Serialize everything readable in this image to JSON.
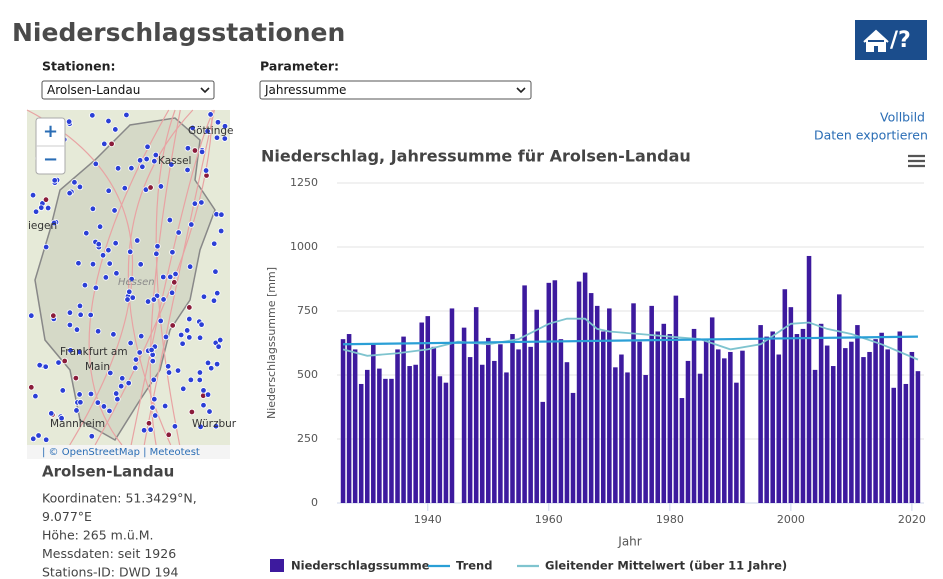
{
  "header": {
    "title": "Niederschlagsstationen",
    "help": "/?"
  },
  "controls": {
    "station_label": "Stationen:",
    "station_value": "Arolsen-Landau",
    "parameter_label": "Parameter:",
    "parameter_value": "Jahressumme"
  },
  "map": {
    "zoom_in": "+",
    "zoom_out": "−",
    "places": [
      "Göttinge",
      "Kassel",
      "iegen",
      "Hessen",
      "Frankfurt am",
      "Main",
      "Würzbur",
      "Mannheim"
    ],
    "attribution": "| © OpenStreetMap | Meteotest"
  },
  "station": {
    "name": "Arolsen-Landau",
    "lines": [
      "Koordinaten: 51.3429°N,",
      "9.077°E",
      "Höhe: 265 m.ü.M.",
      "Messdaten: seit 1926",
      "Stations-ID: DWD 194"
    ]
  },
  "links": [
    "Vollbild",
    "Daten exportieren"
  ],
  "chart_data": {
    "type": "bar",
    "title": "Niederschlag, Jahressumme für Arolsen-Landau",
    "y_label": "Niederschlagssumme [mm]",
    "x_label": "Jahr",
    "x": [
      1926,
      1927,
      1928,
      1929,
      1930,
      1931,
      1932,
      1933,
      1934,
      1935,
      1936,
      1937,
      1938,
      1939,
      1940,
      1941,
      1942,
      1943,
      1944,
      1945,
      1946,
      1947,
      1948,
      1949,
      1950,
      1951,
      1952,
      1953,
      1954,
      1955,
      1956,
      1957,
      1958,
      1959,
      1960,
      1961,
      1962,
      1963,
      1964,
      1965,
      1966,
      1967,
      1968,
      1969,
      1970,
      1971,
      1972,
      1973,
      1974,
      1975,
      1976,
      1977,
      1978,
      1979,
      1980,
      1981,
      1982,
      1983,
      1984,
      1985,
      1986,
      1987,
      1988,
      1989,
      1990,
      1991,
      1992,
      1993,
      1994,
      1995,
      1996,
      1997,
      1998,
      1999,
      2000,
      2001,
      2002,
      2003,
      2004,
      2005,
      2006,
      2007,
      2008,
      2009,
      2010,
      2011,
      2012,
      2013,
      2014,
      2015,
      2016,
      2017,
      2018,
      2019,
      2020,
      2021
    ],
    "series": [
      {
        "name": "Niederschlagssumme",
        "color": "#3d1a9e",
        "values": [
          640,
          660,
          600,
          465,
          520,
          620,
          525,
          485,
          485,
          600,
          650,
          535,
          540,
          705,
          730,
          610,
          495,
          470,
          760,
          null,
          685,
          570,
          765,
          540,
          645,
          555,
          620,
          510,
          660,
          600,
          850,
          610,
          755,
          395,
          860,
          870,
          640,
          550,
          430,
          865,
          900,
          820,
          770,
          670,
          760,
          530,
          580,
          510,
          780,
          630,
          500,
          770,
          670,
          700,
          660,
          810,
          410,
          555,
          680,
          505,
          640,
          725,
          600,
          565,
          590,
          470,
          595,
          null,
          null,
          695,
          650,
          670,
          580,
          835,
          765,
          660,
          680,
          965,
          520,
          700,
          615,
          535,
          815,
          605,
          630,
          695,
          570,
          590,
          640,
          665,
          600,
          450,
          670,
          465,
          590,
          515
        ]
      },
      {
        "name": "Trend",
        "color": "#2a9fd6",
        "x": [
          1926,
          2021
        ],
        "values": [
          620,
          650
        ]
      },
      {
        "name": "Gleitender Mittelwert (über 11 Jahre)",
        "color": "#7fc4cf",
        "x": [
          1926,
          1930,
          1935,
          1940,
          1945,
          1950,
          1955,
          1960,
          1963,
          1966,
          1968,
          1970,
          1975,
          1980,
          1985,
          1990,
          1995,
          2000,
          2003,
          2006,
          2010,
          2015,
          2021
        ],
        "values": [
          600,
          575,
          585,
          600,
          630,
          620,
          640,
          700,
          720,
          720,
          680,
          670,
          660,
          650,
          640,
          600,
          620,
          700,
          705,
          680,
          660,
          620,
          560
        ]
      }
    ],
    "xlim": [
      1925,
      2022
    ],
    "xticks": [
      1940,
      1960,
      1980,
      2000,
      2020
    ],
    "ylim": [
      0,
      1250
    ],
    "yticks": [
      0,
      250,
      500,
      750,
      1000,
      1250
    ],
    "grid": true
  }
}
